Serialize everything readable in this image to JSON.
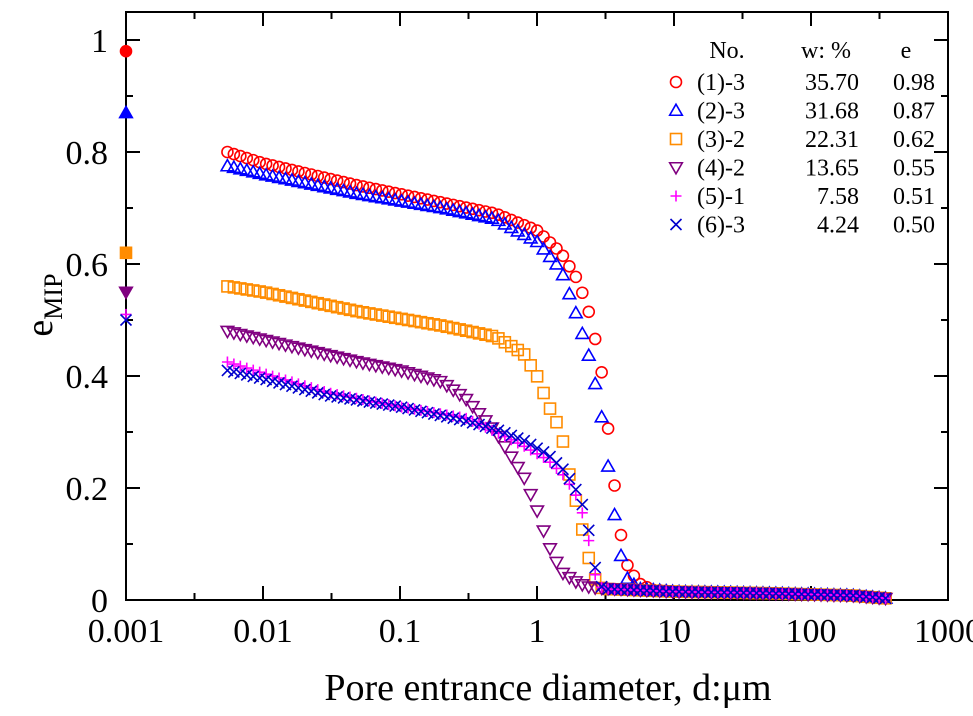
{
  "chart_data": {
    "type": "scatter",
    "xscale": "log",
    "xlim": [
      0.001,
      1000
    ],
    "ylim": [
      0,
      1.05
    ],
    "xticks": [
      0.001,
      0.01,
      0.1,
      1,
      10,
      100,
      1000
    ],
    "xtick_labels": [
      "0.001",
      "0.01",
      "0.1",
      "1",
      "10",
      "100",
      "1000"
    ],
    "yticks": [
      0,
      0.2,
      0.4,
      0.6,
      0.8,
      1
    ],
    "ytick_labels": [
      "0",
      "0.2",
      "0.4",
      "0.6",
      "0.8",
      "1"
    ],
    "xlabel": "Pore entrance diameter, d:μm",
    "ylabel_main": "e",
    "ylabel_sub": "MIP",
    "grid": false,
    "legend": {
      "position": "top-right",
      "headers": [
        "No.",
        "w: %",
        "e"
      ]
    },
    "series": [
      {
        "name": "(1)-3",
        "w": "35.70",
        "e": "0.98",
        "e_value": 0.98,
        "marker": "circle",
        "color": "#ff0000",
        "anchors": [
          [
            0.0055,
            0.8
          ],
          [
            0.01,
            0.78
          ],
          [
            0.05,
            0.74
          ],
          [
            0.2,
            0.71
          ],
          [
            0.5,
            0.69
          ],
          [
            1.0,
            0.66
          ],
          [
            1.5,
            0.62
          ],
          [
            2.0,
            0.57
          ],
          [
            2.5,
            0.5
          ],
          [
            3.0,
            0.4
          ],
          [
            3.5,
            0.25
          ],
          [
            4.0,
            0.13
          ],
          [
            4.5,
            0.065
          ],
          [
            5.5,
            0.03
          ],
          [
            7.0,
            0.018
          ],
          [
            10,
            0.015
          ],
          [
            50,
            0.012
          ],
          [
            200,
            0.008
          ],
          [
            350,
            0.003
          ]
        ]
      },
      {
        "name": "(2)-3",
        "w": "31.68",
        "e": "0.87",
        "e_value": 0.87,
        "marker": "triangle-up",
        "color": "#0000ff",
        "anchors": [
          [
            0.0055,
            0.775
          ],
          [
            0.01,
            0.76
          ],
          [
            0.05,
            0.725
          ],
          [
            0.2,
            0.7
          ],
          [
            0.5,
            0.68
          ],
          [
            1.0,
            0.64
          ],
          [
            1.5,
            0.59
          ],
          [
            2.0,
            0.5
          ],
          [
            2.5,
            0.42
          ],
          [
            3.0,
            0.32
          ],
          [
            3.5,
            0.19
          ],
          [
            4.0,
            0.09
          ],
          [
            4.5,
            0.04
          ],
          [
            5.5,
            0.02
          ],
          [
            10,
            0.015
          ],
          [
            50,
            0.012
          ],
          [
            200,
            0.008
          ],
          [
            350,
            0.003
          ]
        ]
      },
      {
        "name": "(3)-2",
        "w": "22.31",
        "e": "0.62",
        "e_value": 0.62,
        "marker": "square",
        "color": "#ff8c00",
        "anchors": [
          [
            0.0055,
            0.56
          ],
          [
            0.01,
            0.55
          ],
          [
            0.05,
            0.515
          ],
          [
            0.2,
            0.49
          ],
          [
            0.5,
            0.47
          ],
          [
            0.8,
            0.44
          ],
          [
            1.0,
            0.4
          ],
          [
            1.2,
            0.35
          ],
          [
            1.5,
            0.3
          ],
          [
            1.7,
            0.23
          ],
          [
            2.0,
            0.16
          ],
          [
            2.3,
            0.09
          ],
          [
            2.6,
            0.04
          ],
          [
            3.0,
            0.02
          ],
          [
            10,
            0.015
          ],
          [
            50,
            0.012
          ],
          [
            200,
            0.008
          ],
          [
            350,
            0.003
          ]
        ]
      },
      {
        "name": "(4)-2",
        "w": "13.65",
        "e": "0.55",
        "e_value": 0.55,
        "marker": "triangle-down",
        "color": "#800080",
        "anchors": [
          [
            0.0055,
            0.48
          ],
          [
            0.01,
            0.465
          ],
          [
            0.05,
            0.425
          ],
          [
            0.1,
            0.41
          ],
          [
            0.2,
            0.39
          ],
          [
            0.3,
            0.36
          ],
          [
            0.5,
            0.3
          ],
          [
            0.8,
            0.22
          ],
          [
            1.0,
            0.16
          ],
          [
            1.2,
            0.1
          ],
          [
            1.5,
            0.05
          ],
          [
            2.0,
            0.03
          ],
          [
            2.5,
            0.022
          ],
          [
            10,
            0.015
          ],
          [
            50,
            0.012
          ],
          [
            200,
            0.008
          ],
          [
            350,
            0.003
          ]
        ]
      },
      {
        "name": "(5)-1",
        "w": "7.58",
        "e": "0.51",
        "e_value": 0.51,
        "marker": "plus",
        "color": "#ff00ff",
        "anchors": [
          [
            0.0055,
            0.425
          ],
          [
            0.01,
            0.405
          ],
          [
            0.03,
            0.37
          ],
          [
            0.1,
            0.345
          ],
          [
            0.3,
            0.325
          ],
          [
            0.5,
            0.3
          ],
          [
            0.8,
            0.275
          ],
          [
            1.2,
            0.25
          ],
          [
            1.6,
            0.22
          ],
          [
            2.0,
            0.18
          ],
          [
            2.3,
            0.13
          ],
          [
            2.6,
            0.05
          ],
          [
            3.0,
            0.02
          ],
          [
            10,
            0.015
          ],
          [
            50,
            0.012
          ],
          [
            200,
            0.008
          ],
          [
            350,
            0.003
          ]
        ]
      },
      {
        "name": "(6)-3",
        "w": "4.24",
        "e": "0.50",
        "e_value": 0.5,
        "marker": "cross",
        "color": "#0000cc",
        "anchors": [
          [
            0.0055,
            0.41
          ],
          [
            0.01,
            0.395
          ],
          [
            0.03,
            0.365
          ],
          [
            0.1,
            0.345
          ],
          [
            0.3,
            0.32
          ],
          [
            0.5,
            0.305
          ],
          [
            0.8,
            0.285
          ],
          [
            1.2,
            0.26
          ],
          [
            1.6,
            0.23
          ],
          [
            2.0,
            0.19
          ],
          [
            2.3,
            0.15
          ],
          [
            2.6,
            0.065
          ],
          [
            3.0,
            0.02
          ],
          [
            10,
            0.015
          ],
          [
            50,
            0.012
          ],
          [
            200,
            0.008
          ],
          [
            350,
            0.003
          ]
        ]
      }
    ]
  }
}
